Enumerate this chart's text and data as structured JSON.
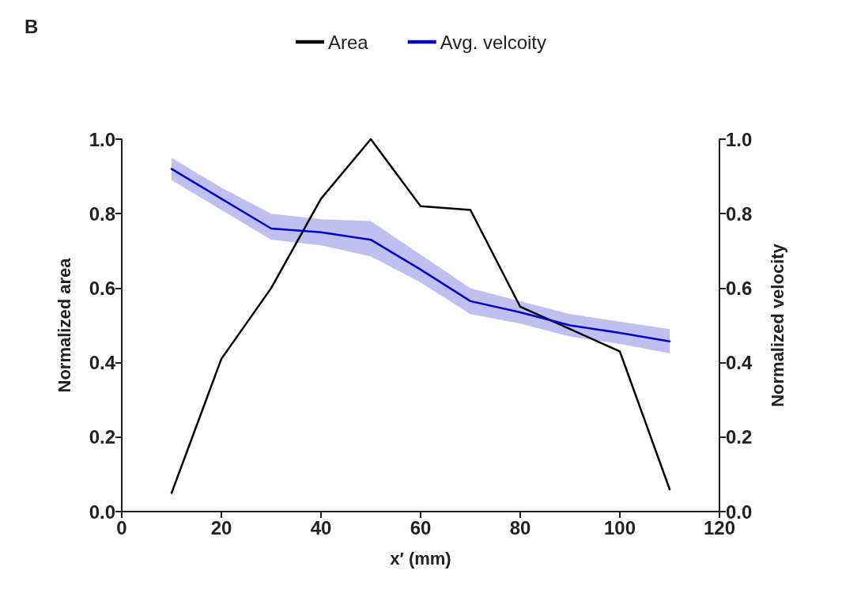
{
  "chart_data": {
    "type": "line",
    "title": "B",
    "xlabel": "x′ (mm)",
    "ylabel": "Normalized area",
    "y2label": "Normalized velocity",
    "x": [
      10,
      20,
      30,
      40,
      50,
      60,
      70,
      80,
      90,
      100,
      110
    ],
    "series": [
      {
        "name": "Area",
        "color": "#000000",
        "values": [
          0.05,
          0.41,
          0.6,
          0.84,
          1.0,
          0.82,
          0.81,
          0.55,
          0.49,
          0.43,
          0.06
        ]
      },
      {
        "name": "Avg. velcoity",
        "color": "#0000cc",
        "values": [
          0.92,
          0.84,
          0.76,
          0.75,
          0.73,
          0.65,
          0.565,
          0.535,
          0.5,
          0.48,
          0.457
        ],
        "lower": [
          0.89,
          0.81,
          0.73,
          0.715,
          0.685,
          0.615,
          0.53,
          0.505,
          0.47,
          0.45,
          0.425
        ],
        "upper": [
          0.95,
          0.87,
          0.8,
          0.785,
          0.78,
          0.69,
          0.6,
          0.565,
          0.53,
          0.51,
          0.49
        ]
      }
    ],
    "xlim": [
      0,
      120
    ],
    "xticks": [
      0,
      20,
      40,
      60,
      80,
      100,
      120
    ],
    "ylim": [
      0,
      1
    ],
    "yticks": [
      {
        "value": 0,
        "label": "0.0"
      },
      0.2,
      0.4,
      0.6,
      0.8,
      {
        "value": 1,
        "label": "1.0"
      }
    ],
    "y2lim": [
      0,
      1
    ],
    "y2ticks": [
      {
        "value": 0,
        "label": "0.0"
      },
      0.2,
      0.4,
      0.6,
      0.8,
      {
        "value": 1,
        "label": "1.0"
      }
    ],
    "legend": "top",
    "grid": false,
    "marker": "none",
    "line_style": "solid"
  }
}
